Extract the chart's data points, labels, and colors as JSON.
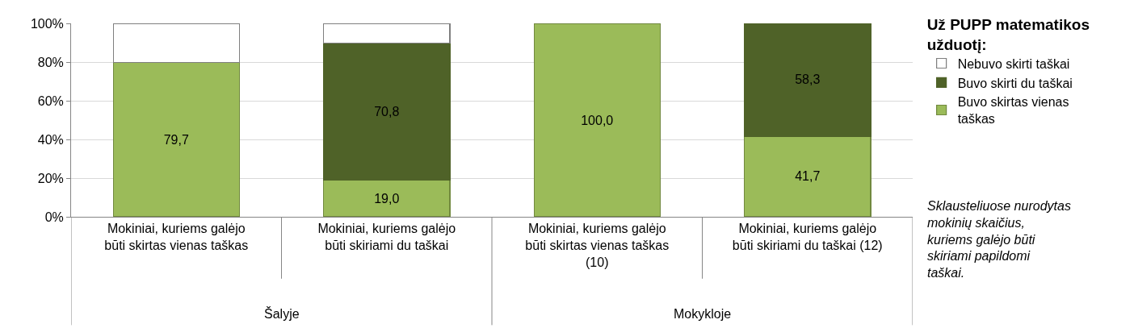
{
  "chart_data": {
    "type": "bar",
    "stacked": true,
    "categories": [
      "Mokiniai, kuriems galėjo būti skirtas vienas taškas",
      "Mokiniai, kuriems galėjo būti skiriami du taškai",
      "Mokiniai, kuriems galėjo būti skirtas vienas taškas (10)",
      "Mokiniai, kuriems galėjo būti skiriami du taškai (12)"
    ],
    "series": [
      {
        "name": "Buvo skirtas vienas taškas",
        "color": "#9bbb59",
        "values": [
          79.7,
          19.0,
          100.0,
          41.7
        ],
        "value_labels": [
          "79,7",
          "19,0",
          "100,0",
          "41,7"
        ]
      },
      {
        "name": "Buvo skirti du taškai",
        "color": "#4f6228",
        "values": [
          null,
          70.8,
          null,
          58.3
        ],
        "value_labels": [
          null,
          "70,8",
          null,
          "58,3"
        ]
      },
      {
        "name": "Nebuvo skirti taškai",
        "color": "#ffffff",
        "values": [
          20.3,
          10.2,
          null,
          null
        ],
        "value_labels": [
          null,
          null,
          null,
          null
        ]
      }
    ],
    "ylim": [
      0,
      100
    ],
    "yticks": [
      {
        "value": 0,
        "label": "0%"
      },
      {
        "value": 20,
        "label": "20%"
      },
      {
        "value": 40,
        "label": "40%"
      },
      {
        "value": 60,
        "label": "60%"
      },
      {
        "value": 80,
        "label": "80%"
      },
      {
        "value": 100,
        "label": "100%"
      }
    ],
    "grid": "y",
    "legend": "top right",
    "legend_title": "Už PUPP matematikos užduotį:",
    "annotations": [
      "Šalyje",
      "Mokykloje",
      "Sklausteliuose nurodytas mokinių skaičius, kuriems galėjo būti skiriami papildomi taškai."
    ]
  }
}
